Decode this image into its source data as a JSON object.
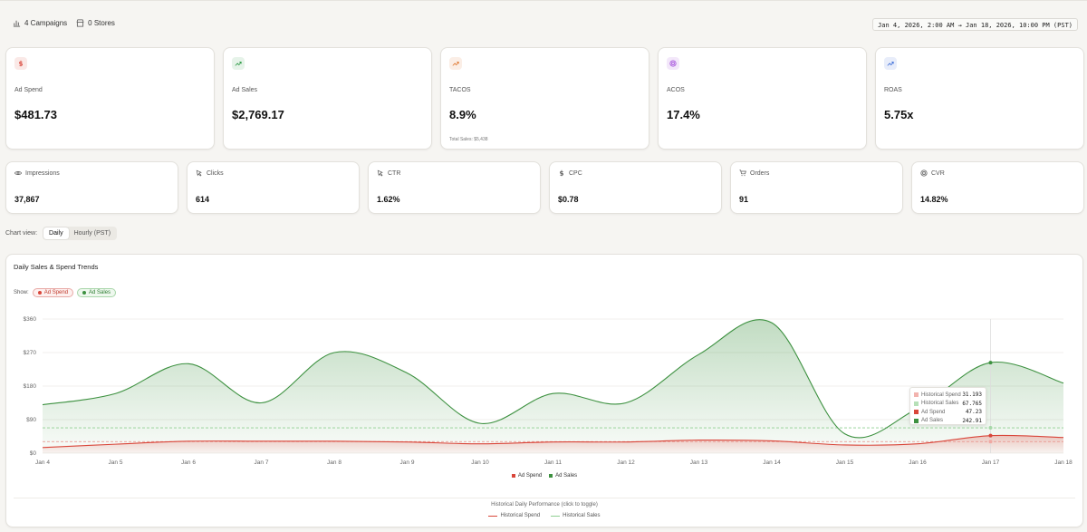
{
  "topbar": {
    "campaigns": "4 Campaigns",
    "stores": "0 Stores",
    "date_range": "Jan 4, 2026, 2:00 AM → Jan 18, 2026, 10:00 PM (PST)"
  },
  "kpis": [
    {
      "label": "Ad Spend",
      "value": "$481.73",
      "icon": "dollar-icon",
      "color": "#d9463a"
    },
    {
      "label": "Ad Sales",
      "value": "$2,769.17",
      "icon": "trend-up-icon",
      "color": "#2e9a46"
    },
    {
      "label": "TACOS",
      "value": "8.9%",
      "sub": "Total Sales: $5,438",
      "icon": "trend-up-icon",
      "color": "#e0762f"
    },
    {
      "label": "ACOS",
      "value": "17.4%",
      "icon": "target-icon",
      "color": "#9b3fd8"
    },
    {
      "label": "ROAS",
      "value": "5.75x",
      "icon": "trend-up-icon",
      "color": "#3f6fd8"
    }
  ],
  "metrics": [
    {
      "label": "Impressions",
      "value": "37,867",
      "icon": "eye-icon"
    },
    {
      "label": "Clicks",
      "value": "614",
      "icon": "cursor-icon"
    },
    {
      "label": "CTR",
      "value": "1.62%",
      "icon": "cursor-icon"
    },
    {
      "label": "CPC",
      "value": "$0.78",
      "icon": "dollar-icon"
    },
    {
      "label": "Orders",
      "value": "91",
      "icon": "cart-icon"
    },
    {
      "label": "CVR",
      "value": "14.82%",
      "icon": "target-icon"
    }
  ],
  "chart_view": {
    "label": "Chart view:",
    "options": [
      "Daily",
      "Hourly (PST)"
    ],
    "selected": "Daily"
  },
  "chart_card": {
    "title": "Daily Sales & Spend Trends",
    "show_label": "Show:",
    "toggles": [
      "Ad Spend",
      "Ad Sales"
    ],
    "legend": [
      "Ad Spend",
      "Ad Sales"
    ],
    "historical_title": "Historical Daily Performance (click to toggle)",
    "historical_legend": [
      "Historical Spend",
      "Historical Sales"
    ]
  },
  "tooltip": [
    {
      "name": "Historical Spend",
      "value": "31.193",
      "color": "#f2b3ae"
    },
    {
      "name": "Historical Sales",
      "value": "67.765",
      "color": "#b6e0b7"
    },
    {
      "name": "Ad Spend",
      "value": "47.23",
      "color": "#d9463a"
    },
    {
      "name": "Ad Sales",
      "value": "242.91",
      "color": "#3d9140"
    }
  ],
  "chart_data": {
    "type": "area",
    "categories": [
      "Jan 4",
      "Jan 5",
      "Jan 6",
      "Jan 7",
      "Jan 8",
      "Jan 9",
      "Jan 10",
      "Jan 11",
      "Jan 12",
      "Jan 13",
      "Jan 14",
      "Jan 15",
      "Jan 16",
      "Jan 17",
      "Jan 18"
    ],
    "y_ticks": [
      "$0",
      "$90",
      "$180",
      "$270",
      "$360"
    ],
    "ylim": [
      0,
      360
    ],
    "series": [
      {
        "name": "Ad Spend",
        "color": "#d9463a",
        "values": [
          15,
          24,
          32,
          32,
          32,
          30,
          25,
          30,
          30,
          35,
          33,
          22,
          25,
          47,
          42
        ]
      },
      {
        "name": "Ad Sales",
        "color": "#3d9140",
        "values": [
          130,
          160,
          240,
          135,
          270,
          215,
          80,
          160,
          135,
          265,
          350,
          52,
          120,
          243,
          188
        ]
      },
      {
        "name": "Historical Spend",
        "color": "#e88f88",
        "values": [
          31,
          31,
          31,
          31,
          31,
          31,
          31,
          31,
          31,
          31,
          31,
          31,
          31,
          31,
          31
        ]
      },
      {
        "name": "Historical Sales",
        "color": "#8fcf91",
        "values": [
          68,
          68,
          68,
          68,
          68,
          68,
          68,
          68,
          68,
          68,
          68,
          68,
          68,
          68,
          68
        ]
      }
    ],
    "highlight_index": 13
  }
}
